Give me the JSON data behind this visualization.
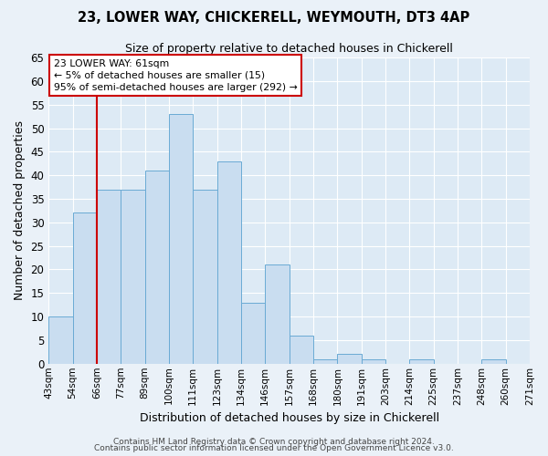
{
  "title": "23, LOWER WAY, CHICKERELL, WEYMOUTH, DT3 4AP",
  "subtitle": "Size of property relative to detached houses in Chickerell",
  "xlabel": "Distribution of detached houses by size in Chickerell",
  "ylabel": "Number of detached properties",
  "bar_values": [
    10,
    32,
    37,
    37,
    41,
    53,
    37,
    43,
    13,
    21,
    6,
    1,
    2,
    1,
    0,
    1,
    0,
    0,
    1
  ],
  "tick_labels": [
    "43sqm",
    "54sqm",
    "66sqm",
    "77sqm",
    "89sqm",
    "100sqm",
    "111sqm",
    "123sqm",
    "134sqm",
    "146sqm",
    "157sqm",
    "168sqm",
    "180sqm",
    "191sqm",
    "203sqm",
    "214sqm",
    "225sqm",
    "237sqm",
    "248sqm",
    "260sqm",
    "271sqm"
  ],
  "bar_color": "#c9ddf0",
  "bar_edge_color": "#6aaad4",
  "background_color": "#eaf1f8",
  "plot_bg_color": "#ddeaf5",
  "grid_color": "#ffffff",
  "red_line_after_bar": 1,
  "annotation_title": "23 LOWER WAY: 61sqm",
  "annotation_line1": "← 5% of detached houses are smaller (15)",
  "annotation_line2": "95% of semi-detached houses are larger (292) →",
  "annotation_box_color": "#ffffff",
  "annotation_border_color": "#cc0000",
  "red_line_color": "#cc0000",
  "ylim": [
    0,
    65
  ],
  "yticks": [
    0,
    5,
    10,
    15,
    20,
    25,
    30,
    35,
    40,
    45,
    50,
    55,
    60,
    65
  ],
  "footer1": "Contains HM Land Registry data © Crown copyright and database right 2024.",
  "footer2": "Contains public sector information licensed under the Open Government Licence v3.0.",
  "title_fontsize": 10.5,
  "subtitle_fontsize": 9,
  "ylabel_fontsize": 9,
  "xlabel_fontsize": 9,
  "ytick_fontsize": 8.5,
  "xtick_fontsize": 7.5,
  "footer_fontsize": 6.5
}
